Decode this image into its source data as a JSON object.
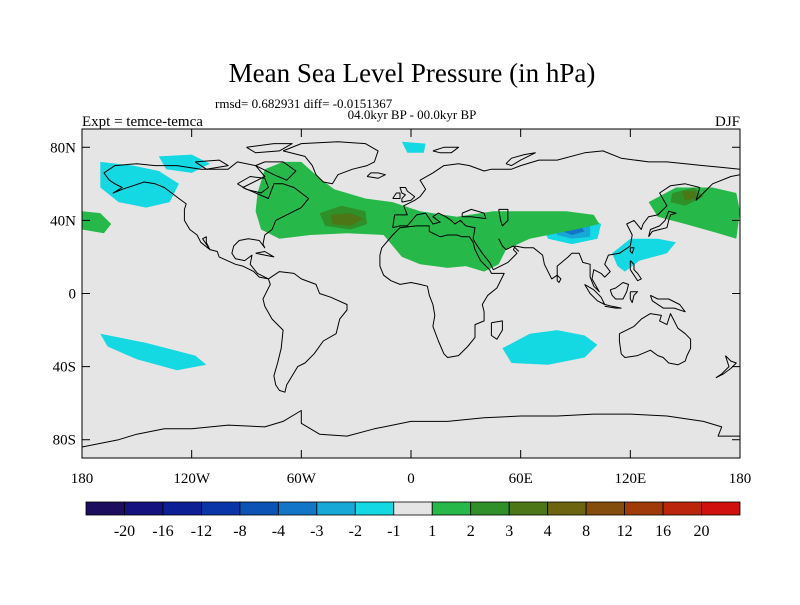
{
  "chart_data": {
    "type": "heatmap",
    "title": "Mean Sea Level Pressure (in hPa)",
    "stats_line": "rmsd= 0.682931 diff= -0.0151367",
    "period_line": "04.0kyr BP - 00.0kyr BP",
    "left_label": "Expt = temce-temca",
    "right_label": "DJF",
    "x_range": [
      -180,
      180
    ],
    "y_range": [
      -90,
      90
    ],
    "x_ticks": [
      {
        "value": -180,
        "label": "180"
      },
      {
        "value": -120,
        "label": "120W"
      },
      {
        "value": -60,
        "label": "60W"
      },
      {
        "value": 0,
        "label": "0"
      },
      {
        "value": 60,
        "label": "60E"
      },
      {
        "value": 120,
        "label": "120E"
      },
      {
        "value": 180,
        "label": "180"
      }
    ],
    "y_ticks": [
      {
        "value": 80,
        "label": "80N"
      },
      {
        "value": 40,
        "label": "40N"
      },
      {
        "value": 0,
        "label": "0"
      },
      {
        "value": -40,
        "label": "40S"
      },
      {
        "value": -80,
        "label": "80S"
      }
    ],
    "colorbar": {
      "colors": [
        "#1d0d5e",
        "#13127e",
        "#0d1f95",
        "#0a35a8",
        "#0b53b4",
        "#1275c7",
        "#18a8d8",
        "#14d8e2",
        "#e5e5e5",
        "#27b84a",
        "#2f8f28",
        "#4d7716",
        "#6c640e",
        "#844d0c",
        "#a03a09",
        "#bb250a",
        "#d0100c"
      ],
      "labels": [
        "-20",
        "-16",
        "-12",
        "-8",
        "-4",
        "-3",
        "-2",
        "-1",
        "1",
        "2",
        "3",
        "4",
        "8",
        "12",
        "16",
        "20"
      ]
    },
    "anomaly_regions": [
      {
        "id": "n-pacific-neg",
        "level": -1,
        "points": [
          [
            -170,
            72
          ],
          [
            -152,
            70
          ],
          [
            -138,
            67
          ],
          [
            -127,
            60
          ],
          [
            -132,
            50
          ],
          [
            -145,
            47
          ],
          [
            -160,
            50
          ],
          [
            -170,
            58
          ]
        ]
      },
      {
        "id": "canada-arctic-neg",
        "level": -1,
        "points": [
          [
            -138,
            75
          ],
          [
            -120,
            76
          ],
          [
            -110,
            71
          ],
          [
            -120,
            66
          ],
          [
            -134,
            68
          ]
        ]
      },
      {
        "id": "greenland-sea-neg",
        "level": -1,
        "points": [
          [
            -5,
            83
          ],
          [
            8,
            82
          ],
          [
            7,
            77
          ],
          [
            -2,
            77
          ]
        ]
      },
      {
        "id": "s-pacific-neg",
        "level": -1,
        "points": [
          [
            -170,
            -22
          ],
          [
            -145,
            -27
          ],
          [
            -118,
            -34
          ],
          [
            -112,
            -39
          ],
          [
            -128,
            -42
          ],
          [
            -150,
            -36
          ],
          [
            -166,
            -29
          ]
        ]
      },
      {
        "id": "s-indian-neg",
        "level": -1,
        "points": [
          [
            50,
            -30
          ],
          [
            65,
            -22
          ],
          [
            80,
            -20
          ],
          [
            95,
            -23
          ],
          [
            102,
            -28
          ],
          [
            95,
            -35
          ],
          [
            75,
            -39
          ],
          [
            55,
            -38
          ]
        ]
      },
      {
        "id": "w-pacific-neg",
        "level": -1,
        "points": [
          [
            110,
            22
          ],
          [
            120,
            30
          ],
          [
            135,
            30
          ],
          [
            145,
            28
          ],
          [
            140,
            22
          ],
          [
            125,
            18
          ],
          [
            117,
            12
          ],
          [
            113,
            15
          ]
        ]
      },
      {
        "id": "tibet-neg1",
        "level": -1,
        "points": [
          [
            70,
            40
          ],
          [
            82,
            44
          ],
          [
            95,
            43
          ],
          [
            104,
            38
          ],
          [
            102,
            30
          ],
          [
            88,
            27
          ],
          [
            75,
            30
          ]
        ]
      },
      {
        "id": "tibet-neg2",
        "level": -2,
        "points": [
          [
            78,
            38
          ],
          [
            88,
            40
          ],
          [
            98,
            38
          ],
          [
            98,
            31
          ],
          [
            88,
            30
          ],
          [
            80,
            32
          ]
        ]
      },
      {
        "id": "tibet-neg3",
        "level": -3,
        "points": [
          [
            84,
            37
          ],
          [
            92,
            38
          ],
          [
            95,
            34
          ],
          [
            88,
            32
          ],
          [
            83,
            34
          ]
        ]
      },
      {
        "id": "atl-eur-pos",
        "level": 1,
        "points": [
          [
            -80,
            68
          ],
          [
            -70,
            72
          ],
          [
            -60,
            72
          ],
          [
            -50,
            63
          ],
          [
            -42,
            57
          ],
          [
            -25,
            52
          ],
          [
            -10,
            50
          ],
          [
            5,
            45
          ],
          [
            25,
            42
          ],
          [
            45,
            45
          ],
          [
            65,
            45
          ],
          [
            85,
            45
          ],
          [
            100,
            43
          ],
          [
            103,
            38
          ],
          [
            90,
            35
          ],
          [
            65,
            30
          ],
          [
            52,
            24
          ],
          [
            48,
            16
          ],
          [
            40,
            12
          ],
          [
            30,
            15
          ],
          [
            20,
            14
          ],
          [
            5,
            16
          ],
          [
            -5,
            20
          ],
          [
            -15,
            32
          ],
          [
            -35,
            33
          ],
          [
            -55,
            32
          ],
          [
            -72,
            30
          ],
          [
            -82,
            35
          ],
          [
            -85,
            45
          ],
          [
            -84,
            55
          ]
        ]
      },
      {
        "id": "ne-pacific-pos",
        "level": 1,
        "points": [
          [
            -180,
            45
          ],
          [
            -170,
            44
          ],
          [
            -164,
            38
          ],
          [
            -168,
            33
          ],
          [
            -180,
            35
          ]
        ]
      },
      {
        "id": "nw-pacific-pos",
        "level": 1,
        "points": [
          [
            130,
            50
          ],
          [
            145,
            58
          ],
          [
            165,
            58
          ],
          [
            178,
            55
          ],
          [
            180,
            45
          ],
          [
            178,
            30
          ],
          [
            168,
            33
          ],
          [
            150,
            38
          ],
          [
            135,
            42
          ]
        ]
      },
      {
        "id": "atl-pos2",
        "level": 2,
        "points": [
          [
            -50,
            44
          ],
          [
            -38,
            48
          ],
          [
            -25,
            45
          ],
          [
            -24,
            38
          ],
          [
            -33,
            35
          ],
          [
            -47,
            37
          ]
        ]
      },
      {
        "id": "npac-pos2",
        "level": 2,
        "points": [
          [
            143,
            55
          ],
          [
            155,
            58
          ],
          [
            160,
            53
          ],
          [
            150,
            48
          ],
          [
            142,
            50
          ]
        ]
      },
      {
        "id": "atl-pos3",
        "level": 3,
        "points": [
          [
            -44,
            43
          ],
          [
            -33,
            44
          ],
          [
            -26,
            41
          ],
          [
            -33,
            37
          ],
          [
            -43,
            38
          ]
        ]
      },
      {
        "id": "npac-pos3",
        "level": 3,
        "points": [
          [
            148,
            56
          ],
          [
            156,
            56
          ],
          [
            156,
            52
          ],
          [
            150,
            51
          ]
        ]
      }
    ]
  }
}
